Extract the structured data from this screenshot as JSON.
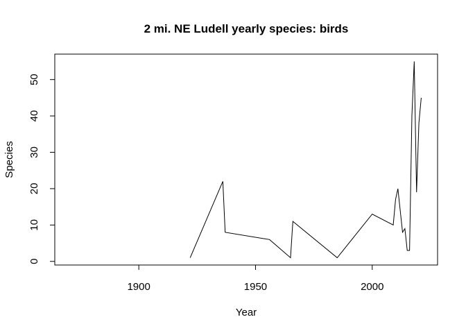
{
  "chart_data": {
    "type": "line",
    "title": "2 mi. NE Ludell yearly species: birds",
    "xlabel": "Year",
    "ylabel": "Species",
    "xlim": [
      1864,
      2028
    ],
    "ylim": [
      -1,
      57
    ],
    "x_ticks": [
      1900,
      1950,
      2000
    ],
    "y_ticks": [
      0,
      10,
      20,
      30,
      40,
      50
    ],
    "grid": false,
    "legend": "none",
    "colors": {
      "line": "#000000",
      "axes": "#000000",
      "background": "#ffffff"
    },
    "series": [
      {
        "x": [
          1922,
          1936,
          1937,
          1956,
          1965,
          1966,
          1985,
          2000,
          2009,
          2010,
          2011,
          2013,
          2014,
          2015,
          2016,
          2017,
          2018,
          2019,
          2020,
          2021
        ],
        "y": [
          1,
          22,
          8,
          6,
          1,
          11,
          1,
          13,
          10,
          17,
          20,
          8,
          9,
          3,
          3,
          40,
          55,
          19,
          38,
          45
        ]
      }
    ]
  }
}
